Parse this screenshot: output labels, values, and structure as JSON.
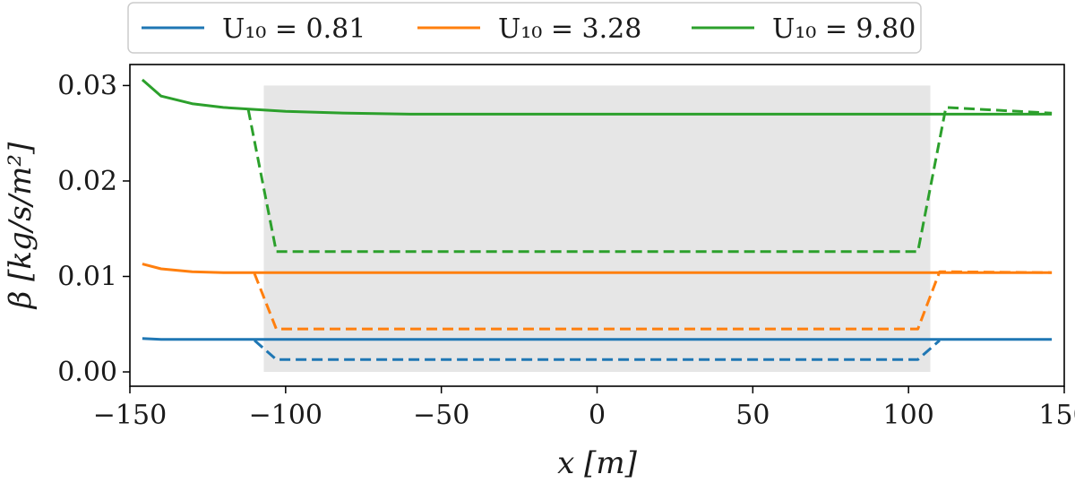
{
  "chart_data": {
    "type": "line",
    "title": "",
    "xlabel": "x [m]",
    "ylabel": "β [kg/s/m²]",
    "xlim": [
      -150,
      150
    ],
    "ylim": [
      -0.0015,
      0.0322
    ],
    "xticks": [
      -150,
      -100,
      -50,
      0,
      50,
      100,
      150
    ],
    "xtick_labels": [
      "−150",
      "−100",
      "−50",
      "0",
      "50",
      "100",
      "150"
    ],
    "yticks": [
      0.0,
      0.01,
      0.02,
      0.03
    ],
    "ytick_labels": [
      "0.00",
      "0.01",
      "0.02",
      "0.03"
    ],
    "grid": false,
    "legend_position": "top (outside plot)",
    "shaded_region": {
      "x": [
        -107,
        107
      ],
      "y": [
        0.0,
        0.03
      ],
      "color": "#e6e6e6"
    },
    "series": [
      {
        "name": "U10 = 0.81",
        "legend_label": "U₁₀ = 0.81",
        "style": "solid",
        "color": "#1f77b4",
        "x": [
          -146,
          -140,
          -130,
          -120,
          -110,
          -100,
          -50,
          0,
          50,
          100,
          110,
          120,
          130,
          140,
          146
        ],
        "y": [
          0.0035,
          0.0034,
          0.0034,
          0.0034,
          0.0034,
          0.0034,
          0.0034,
          0.0034,
          0.0034,
          0.0034,
          0.0034,
          0.0034,
          0.0034,
          0.0034,
          0.0034
        ]
      },
      {
        "name": "U10 = 3.28",
        "legend_label": "U₁₀ = 3.28",
        "style": "solid",
        "color": "#ff7f0e",
        "x": [
          -146,
          -140,
          -130,
          -120,
          -110,
          -100,
          -50,
          0,
          50,
          100,
          110,
          120,
          130,
          140,
          146
        ],
        "y": [
          0.0113,
          0.0108,
          0.0105,
          0.0104,
          0.0104,
          0.0104,
          0.0104,
          0.0104,
          0.0104,
          0.0104,
          0.0104,
          0.0104,
          0.0104,
          0.0104,
          0.0104
        ]
      },
      {
        "name": "U10 = 9.80",
        "legend_label": "U₁₀ = 9.80",
        "style": "solid",
        "color": "#2ca02c",
        "x": [
          -146,
          -140,
          -130,
          -120,
          -110,
          -100,
          -80,
          -60,
          -40,
          0,
          50,
          100,
          110,
          120,
          130,
          140,
          146
        ],
        "y": [
          0.0306,
          0.0289,
          0.0281,
          0.0277,
          0.0275,
          0.0273,
          0.0271,
          0.027,
          0.027,
          0.027,
          0.027,
          0.027,
          0.027,
          0.027,
          0.027,
          0.027,
          0.027
        ]
      },
      {
        "name": "U10 = 0.81 dashed",
        "style": "dashed",
        "color": "#1f77b4",
        "x": [
          -110,
          -103,
          103,
          110
        ],
        "y": [
          0.0033,
          0.0013,
          0.0013,
          0.0033
        ]
      },
      {
        "name": "U10 = 3.28 dashed",
        "style": "dashed",
        "color": "#ff7f0e",
        "x": [
          -110,
          -103,
          103,
          110,
          146
        ],
        "y": [
          0.0103,
          0.0045,
          0.0045,
          0.0105,
          0.0104
        ]
      },
      {
        "name": "U10 = 9.80 dashed",
        "style": "dashed",
        "color": "#2ca02c",
        "x": [
          -112,
          -103,
          103,
          112,
          146
        ],
        "y": [
          0.0275,
          0.0126,
          0.0126,
          0.0277,
          0.0271
        ]
      }
    ]
  }
}
